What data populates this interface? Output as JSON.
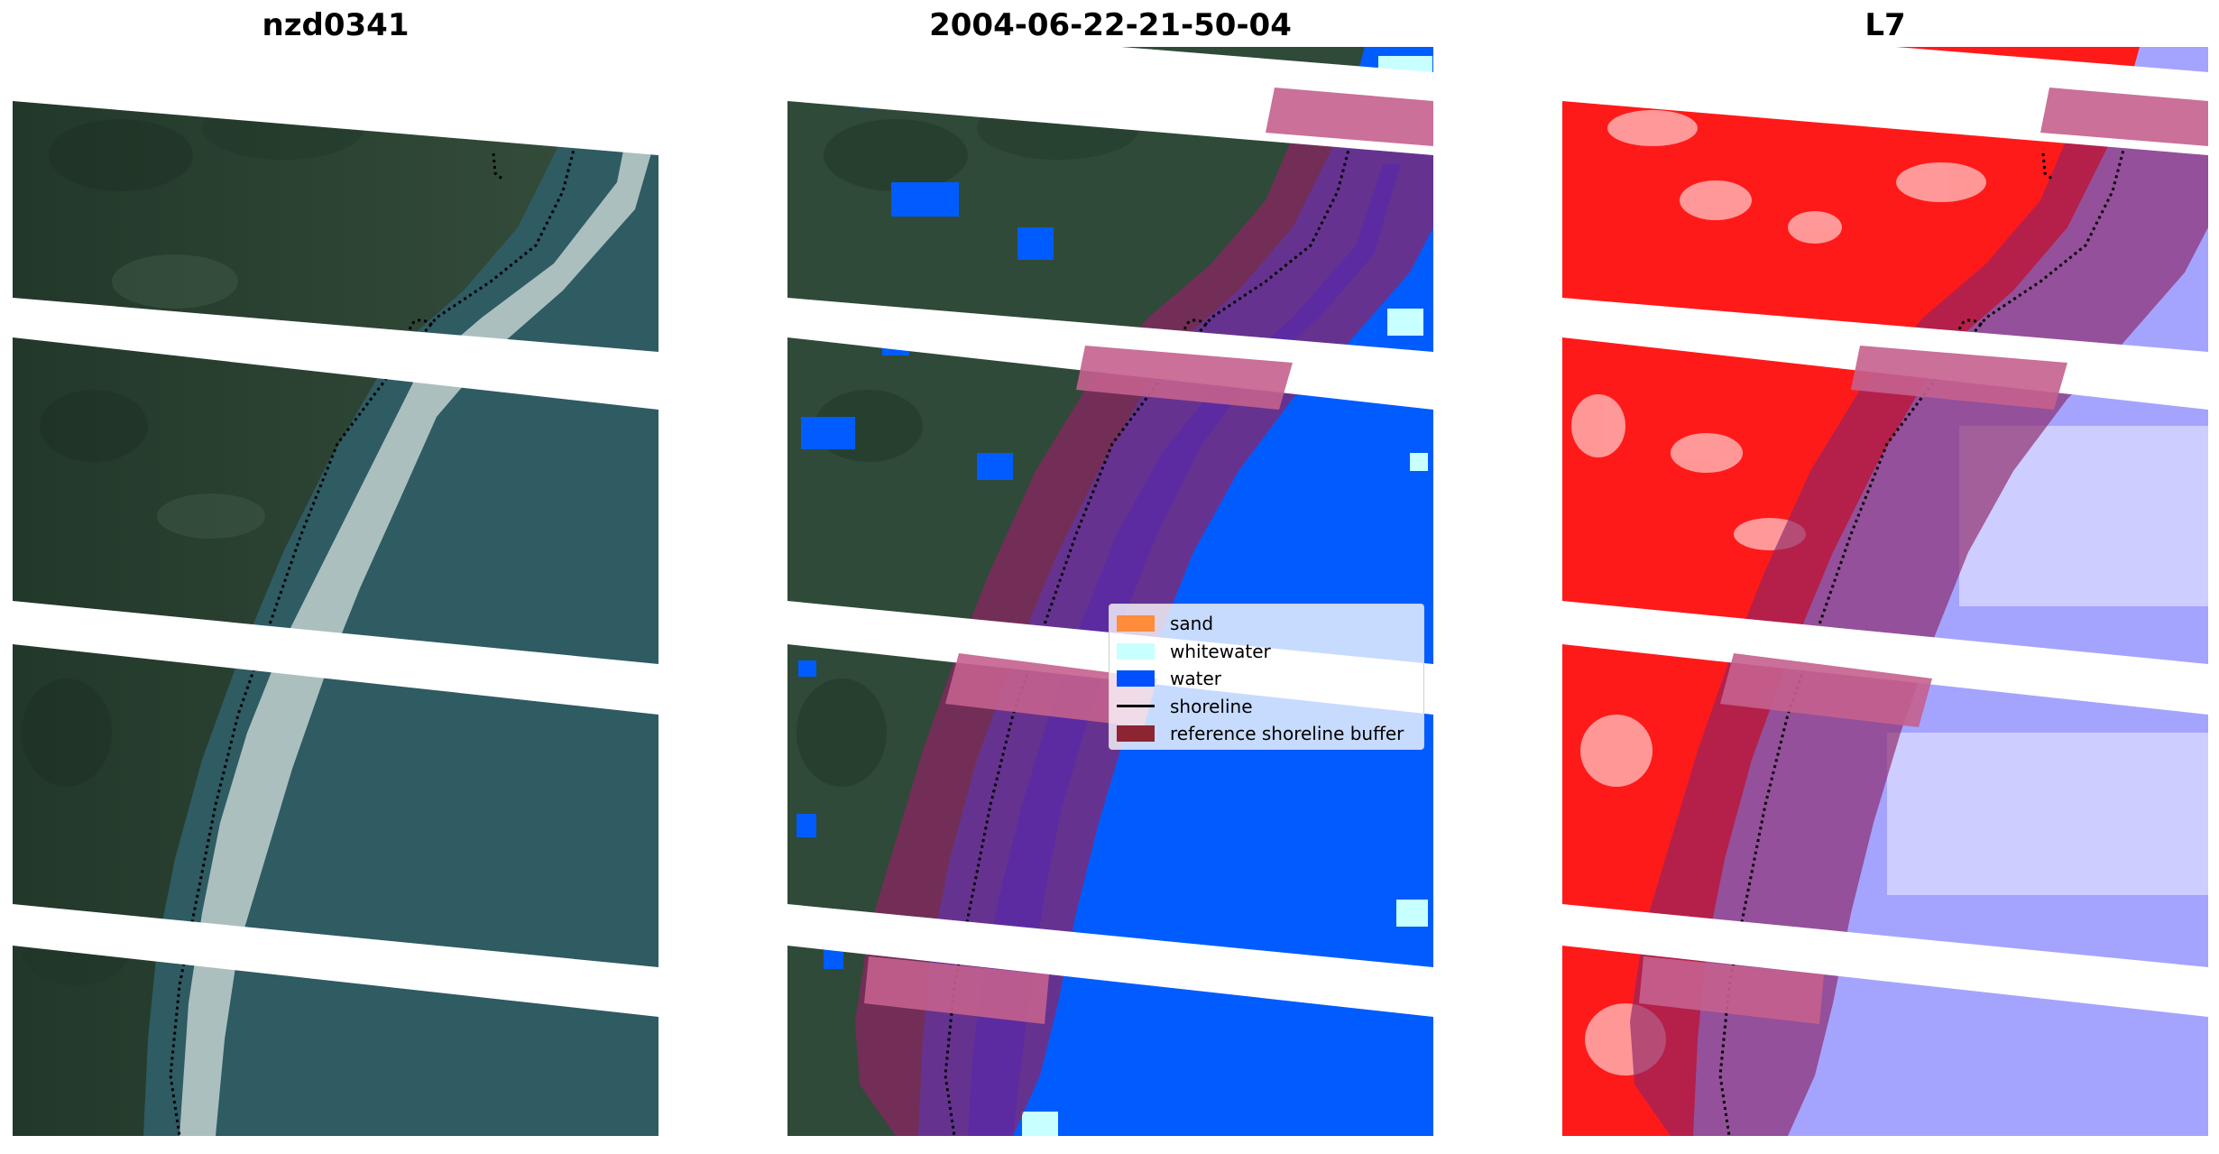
{
  "panels": {
    "left": {
      "title": "nzd0341",
      "content": "RGB satellite image with dotted shoreline"
    },
    "middle": {
      "title": "2004-06-22-21-50-04",
      "content": "classified image with shoreline buffer"
    },
    "right": {
      "title": "L7",
      "content": "index image with shoreline buffer"
    }
  },
  "legend": {
    "items": [
      {
        "label": "sand",
        "color": "#ff8c3a"
      },
      {
        "label": "whitewater",
        "color": "#c8ffff"
      },
      {
        "label": "water",
        "color": "#0050ff"
      },
      {
        "label": "shoreline",
        "color": "#000000"
      },
      {
        "label": "reference shoreline buffer",
        "color": "#8c2432"
      }
    ]
  },
  "colors": {
    "land": "#2f4a38",
    "sea": "#2f5b63",
    "water_class": "#005cff",
    "buffer_overlay": "#8c2464",
    "index_land": "#ff1a1a",
    "index_water": "#a4a4ff"
  }
}
